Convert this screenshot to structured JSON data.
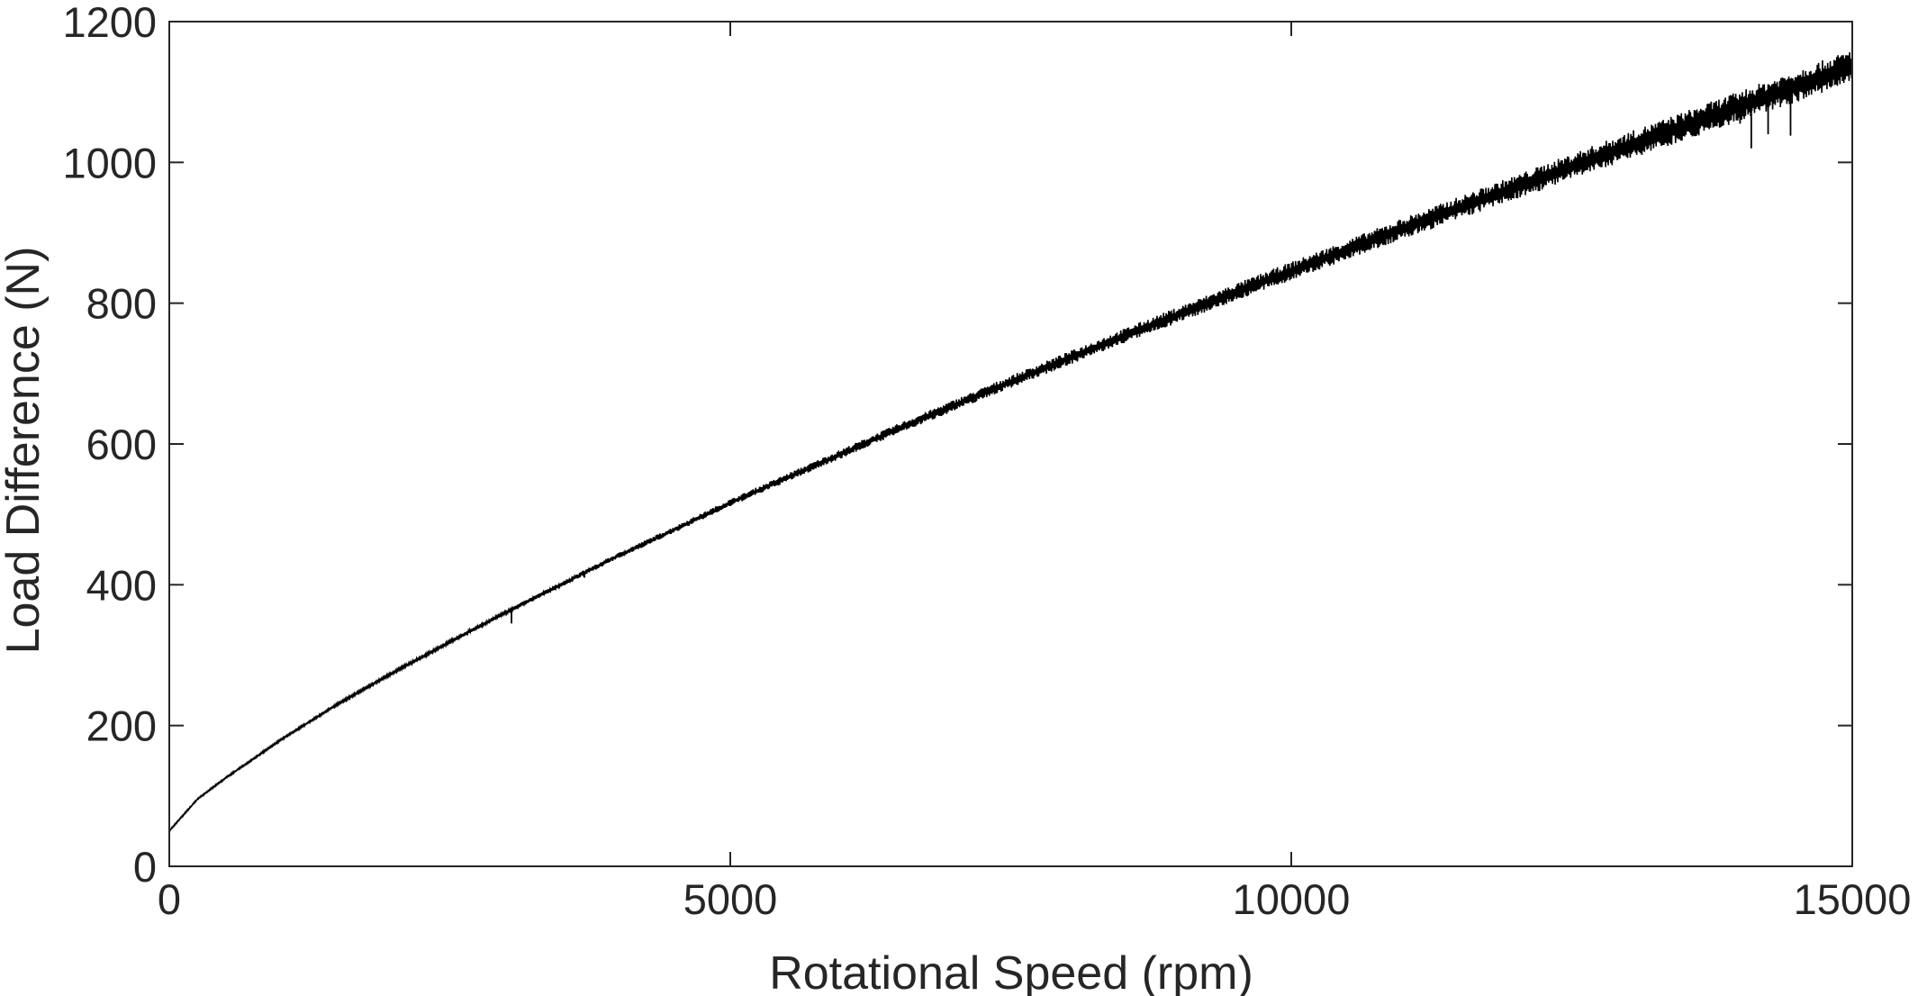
{
  "chart_data": {
    "type": "line",
    "title": "",
    "xlabel": "Rotational Speed (rpm)",
    "ylabel": "Load Difference (N)",
    "xlim": [
      0,
      15000
    ],
    "ylim": [
      0,
      1200
    ],
    "xticks": [
      0,
      5000,
      10000,
      15000
    ],
    "yticks": [
      0,
      200,
      400,
      600,
      800,
      1000,
      1200
    ],
    "xtick_labels": [
      "0",
      "5000",
      "10000",
      "15000"
    ],
    "ytick_labels": [
      "0",
      "200",
      "400",
      "600",
      "800",
      "1000",
      "1200"
    ],
    "grid": false,
    "box": true,
    "line_color": "#000000",
    "axis_color": "#262626",
    "series": [
      {
        "x": [
          0,
          250,
          500,
          1000,
          1500,
          2000,
          2500,
          3000,
          3500,
          4000,
          4500,
          5000,
          5500,
          6000,
          6500,
          7000,
          7500,
          8000,
          8500,
          9000,
          9500,
          10000,
          10500,
          11000,
          11500,
          12000,
          12500,
          13000,
          13500,
          14000,
          14500,
          15000
        ],
        "values": [
          50,
          95,
          125,
          180,
          230,
          275,
          318,
          360,
          400,
          440,
          477,
          515,
          550,
          585,
          620,
          653,
          686,
          718,
          750,
          781,
          812,
          842,
          872,
          902,
          931,
          960,
          989,
          1018,
          1046,
          1074,
          1102,
          1130
        ]
      }
    ],
    "spikes": [
      {
        "x": 3050,
        "y": 345
      },
      {
        "x": 3400,
        "y": 395
      },
      {
        "x": 3700,
        "y": 410
      },
      {
        "x": 14100,
        "y": 1020
      },
      {
        "x": 14250,
        "y": 1040
      },
      {
        "x": 14450,
        "y": 1038
      },
      {
        "x": 14000,
        "y": 1055
      }
    ]
  }
}
